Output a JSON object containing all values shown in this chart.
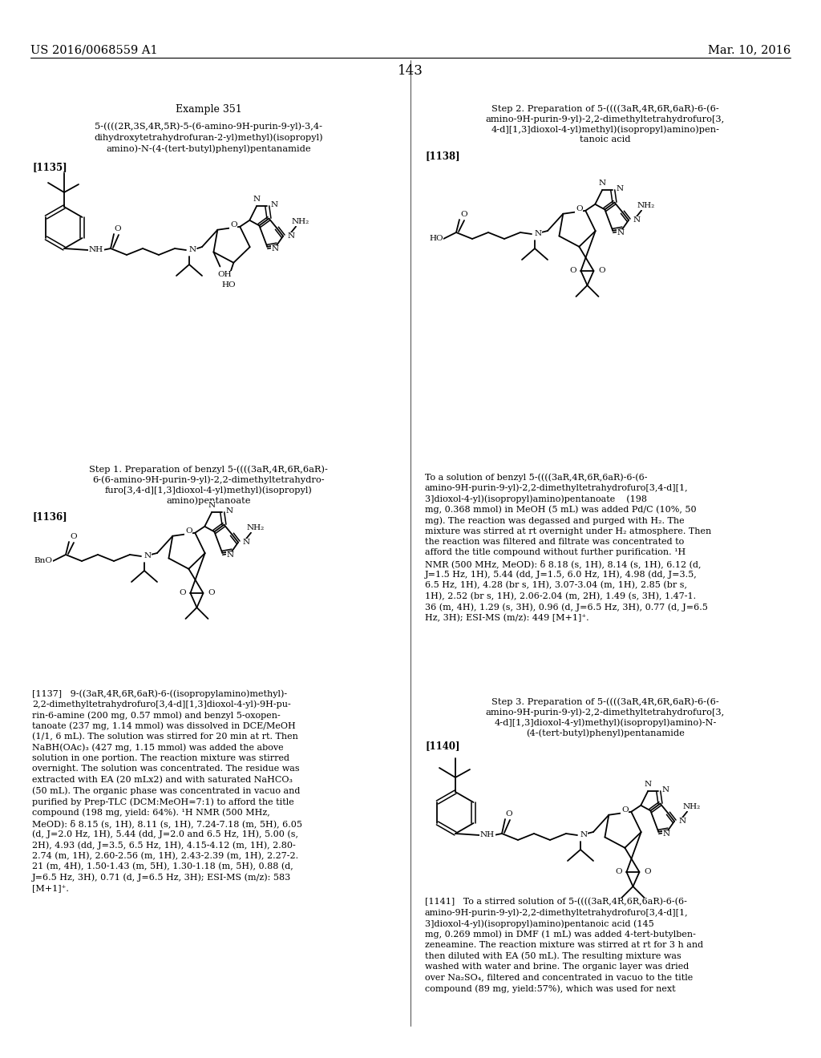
{
  "page_header_left": "US 2016/0068559 A1",
  "page_header_right": "Mar. 10, 2016",
  "page_number": "143",
  "background_color": "#ffffff",
  "text_color": "#000000",
  "font_size_header": 10.5,
  "font_size_body": 8.5,
  "font_size_small": 7.8,
  "font_size_page_num": 12,
  "example_title": "Example 351",
  "compound_name_1135_lines": [
    "5-((((2R,3S,4R,5R)-5-(6-amino-9H-purin-9-yl)-3,4-",
    "dihydroxytetrahydrofuran-2-yl)methyl)(isopropyl)",
    "amino)-N-(4-(tert-butyl)phenyl)pentanamide"
  ],
  "label_1135": "[1135]",
  "label_1136": "[1136]",
  "label_1138": "[1138]",
  "label_1140": "[1140]",
  "step1_title_lines": [
    "Step 1. Preparation of benzyl 5-((((3aR,4R,6R,6aR)-",
    "6-(6-amino-9H-purin-9-yl)-2,2-dimethyltetrahydro-",
    "furo[3,4-d][1,3]dioxol-4-yl)methyl)(isopropyl)",
    "amino)pentanoate"
  ],
  "step2_title_lines": [
    "Step 2. Preparation of 5-((((3aR,4R,6R,6aR)-6-(6-",
    "amino-9H-purin-9-yl)-2,2-dimethyltetrahydrofuro[3,",
    "4-d][1,3]dioxol-4-yl)methyl)(isopropyl)amino)pen-",
    "tanoic acid"
  ],
  "step3_title_lines": [
    "Step 3. Preparation of 5-((((3aR,4R,6R,6aR)-6-(6-",
    "amino-9H-purin-9-yl)-2,2-dimethyltetrahydrofuro[3,",
    "4-d][1,3]dioxol-4-yl)methyl)(isopropyl)amino)-N-",
    "(4-(tert-butyl)phenyl)pentanamide"
  ],
  "para_1137_lines": [
    "[1137]   9-((3aR,4R,6R,6aR)-6-((isopropylamino)methyl)-",
    "2,2-dimethyltetrahydrofuro[3,4-d][1,3]dioxol-4-yl)-9H-pu-",
    "rin-6-amine (200 mg, 0.57 mmol) and benzyl 5-oxopen-",
    "tanoate (237 mg, 1.14 mmol) was dissolved in DCE/MeOH",
    "(1/1, 6 mL). The solution was stirred for 20 min at rt. Then",
    "NaBH(OAc)₃ (427 mg, 1.15 mmol) was added the above",
    "solution in one portion. The reaction mixture was stirred",
    "overnight. The solution was concentrated. The residue was",
    "extracted with EA (20 mLx2) and with saturated NaHCO₃",
    "(50 mL). The organic phase was concentrated in vacuo and",
    "purified by Prep-TLC (DCM:MeOH=7:1) to afford the title",
    "compound (198 mg, yield: 64%). ¹H NMR (500 MHz,",
    "MeOD): δ 8.15 (s, 1H), 8.11 (s, 1H), 7.24-7.18 (m, 5H), 6.05",
    "(d, J=2.0 Hz, 1H), 5.44 (dd, J=2.0 and 6.5 Hz, 1H), 5.00 (s,",
    "2H), 4.93 (dd, J=3.5, 6.5 Hz, 1H), 4.15-4.12 (m, 1H), 2.80-",
    "2.74 (m, 1H), 2.60-2.56 (m, 1H), 2.43-2.39 (m, 1H), 2.27-2.",
    "21 (m, 4H), 1.50-1.43 (m, 5H), 1.30-1.18 (m, 5H), 0.88 (d,",
    "J=6.5 Hz, 3H), 0.71 (d, J=6.5 Hz, 3H); ESI-MS (m/z): 583",
    "[M+1]⁺."
  ],
  "para_1139_lines": [
    "To a solution of benzyl 5-((((3aR,4R,6R,6aR)-6-(6-",
    "amino-9H-purin-9-yl)-2,2-dimethyltetrahydrofuro[3,4-d][1,",
    "3]dioxol-4-yl)(isopropyl)amino)pentanoate    (198",
    "mg, 0.368 mmol) in MeOH (5 mL) was added Pd/C (10%, 50",
    "mg). The reaction was degassed and purged with H₂. The",
    "mixture was stirred at rt overnight under H₂ atmosphere. Then",
    "the reaction was filtered and filtrate was concentrated to",
    "afford the title compound without further purification. ¹H",
    "NMR (500 MHz, MeOD): δ 8.18 (s, 1H), 8.14 (s, 1H), 6.12 (d,",
    "J=1.5 Hz, 1H), 5.44 (dd, J=1.5, 6.0 Hz, 1H), 4.98 (dd, J=3.5,",
    "6.5 Hz, 1H), 4.28 (br s, 1H), 3.07-3.04 (m, 1H), 2.85 (br s,",
    "1H), 2.52 (br s, 1H), 2.06-2.04 (m, 2H), 1.49 (s, 3H), 1.47-1.",
    "36 (m, 4H), 1.29 (s, 3H), 0.96 (d, J=6.5 Hz, 3H), 0.77 (d, J=6.5",
    "Hz, 3H); ESI-MS (m/z): 449 [M+1]⁺."
  ],
  "para_1141_lines": [
    "[1141]   To a stirred solution of 5-((((3aR,4R,6R,6aR)-6-(6-",
    "amino-9H-purin-9-yl)-2,2-dimethyltetrahydrofuro[3,4-d][1,",
    "3]dioxol-4-yl)(isopropyl)amino)pentanoic acid (145",
    "mg, 0.269 mmol) in DMF (1 mL) was added 4-tert-butylben-",
    "zeneamine. The reaction mixture was stirred at rt for 3 h and",
    "then diluted with EA (50 mL). The resulting mixture was",
    "washed with water and brine. The organic layer was dried",
    "over Na₂SO₄, filtered and concentrated in vacuo to the title",
    "compound (89 mg, yield:57%), which was used for next"
  ]
}
